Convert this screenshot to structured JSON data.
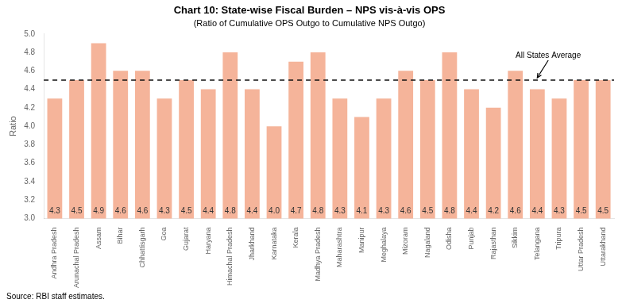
{
  "chart_data": {
    "type": "bar",
    "title": "Chart 10: State-wise Fiscal Burden – NPS vis-à-vis OPS",
    "subtitle": "(Ratio of Cumulative OPS Outgo to Cumulative NPS Outgo)",
    "y_label": "Ratio",
    "categories": [
      "Andhra Pradesh",
      "Arunachal Pradesh",
      "Assam",
      "Bihar",
      "Chhattisgarh",
      "Goa",
      "Gujarat",
      "Haryana",
      "Himachal Pradesh",
      "Jharkhand",
      "Karnataka",
      "Kerala",
      "Madhya Pradesh",
      "Maharashtra",
      "Manipur",
      "Meghalaya",
      "Mizoram",
      "Nagaland",
      "Odisha",
      "Punjab",
      "Rajasthan",
      "Sikkim",
      "Telangana",
      "Tripura",
      "Uttar Pradesh",
      "Uttarakhand"
    ],
    "values": [
      4.3,
      4.5,
      4.9,
      4.6,
      4.6,
      4.3,
      4.5,
      4.4,
      4.8,
      4.4,
      4.0,
      4.7,
      4.8,
      4.3,
      4.1,
      4.3,
      4.6,
      4.5,
      4.8,
      4.4,
      4.2,
      4.6,
      4.4,
      4.3,
      4.5,
      4.5
    ],
    "value_labels": [
      "4.3",
      "4.5",
      "4.9",
      "4.6",
      "4.6",
      "4.3",
      "4.5",
      "4.4",
      "4.8",
      "4.4",
      "4.0",
      "4.7",
      "4.8",
      "4.3",
      "4.1",
      "4.3",
      "4.6",
      "4.5",
      "4.8",
      "4.4",
      "4.2",
      "4.6",
      "4.4",
      "4.3",
      "4.5",
      "4.5"
    ],
    "data_labels": true,
    "color": "#F5B49A",
    "ylim": [
      3.0,
      5.0
    ],
    "yticks": [
      {
        "value": 3.0,
        "label": "3.0"
      },
      3.2,
      3.4,
      3.6,
      3.8,
      {
        "value": 4.0,
        "label": "4.0"
      },
      4.2,
      4.4,
      4.6,
      4.8,
      {
        "value": 5.0,
        "label": "5.0"
      }
    ],
    "grid": false,
    "average_line": {
      "value": 4.5,
      "label": "All States Average",
      "category": "Telangana",
      "color": "#111111",
      "line_style": "dashed"
    },
    "source": "Source: RBI staff estimates."
  }
}
